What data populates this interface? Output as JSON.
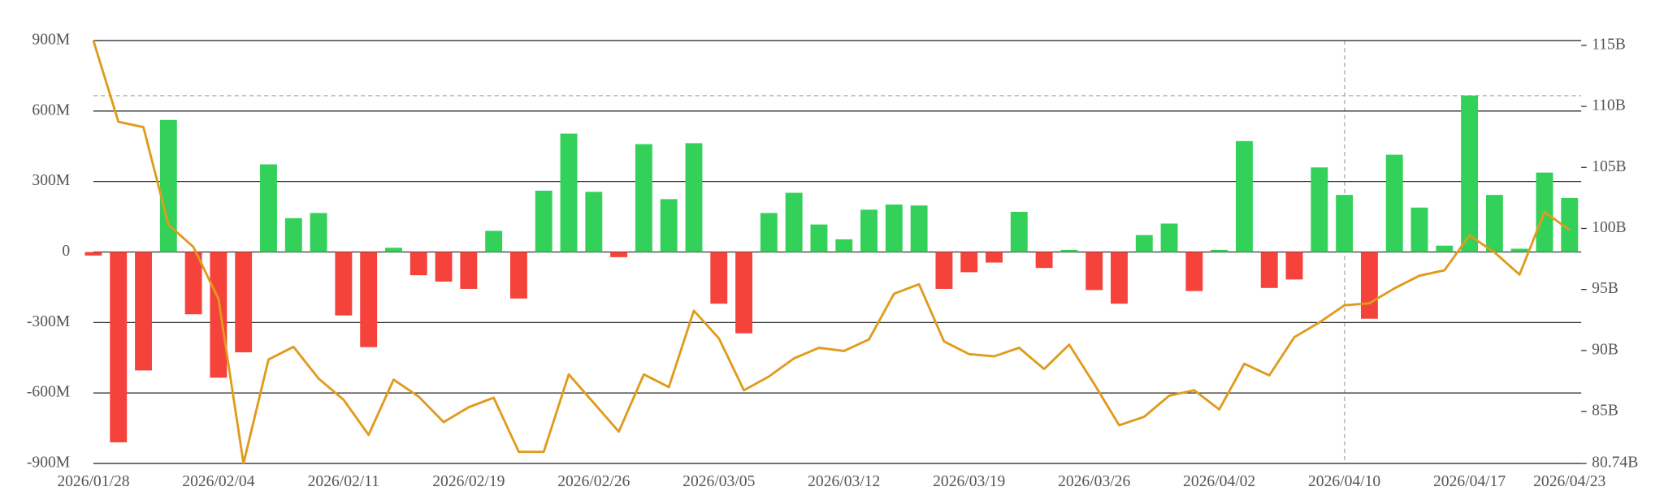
{
  "chart_data": {
    "type": "bar",
    "categories": [
      "2026/01/28",
      null,
      null,
      null,
      null,
      "2026/02/04",
      null,
      null,
      null,
      null,
      "2026/02/11",
      null,
      null,
      null,
      null,
      "2026/02/19",
      null,
      null,
      null,
      null,
      "2026/02/26",
      null,
      null,
      null,
      null,
      "2026/03/05",
      null,
      null,
      null,
      null,
      "2026/03/12",
      null,
      null,
      null,
      null,
      "2026/03/19",
      null,
      null,
      null,
      null,
      "2026/03/26",
      null,
      null,
      null,
      null,
      "2026/04/02",
      null,
      null,
      null,
      null,
      "2026/04/10",
      null,
      null,
      null,
      null,
      "2026/04/17",
      null,
      null,
      null,
      "2026/04/23"
    ],
    "series": [
      {
        "type": "bar",
        "color": "#33d15a",
        "negative_color": "#f5433c",
        "values": [
          -15,
          -810,
          -504,
          562,
          -265,
          -535,
          -427,
          373,
          144,
          166,
          -270,
          -405,
          18,
          -99,
          -126,
          -157,
          90,
          -198,
          261,
          504,
          256,
          -22,
          459,
          225,
          463,
          -220,
          -346,
          166,
          252,
          117,
          54,
          180,
          202,
          198,
          -157,
          -86,
          -45,
          171,
          -68,
          9,
          -162,
          -220,
          72,
          121,
          -166,
          9,
          472,
          -153,
          -117,
          360,
          243,
          -284,
          414,
          189,
          27,
          666,
          243,
          14,
          338,
          230
        ]
      },
      {
        "type": "line",
        "axis": "y2",
        "color": "#e09b1c",
        "values": [
          115.4,
          108.74,
          108.3,
          100.3,
          98.48,
          94.22,
          80.74,
          89.26,
          90.3,
          87.7,
          85.96,
          83.09,
          87.61,
          86.22,
          84.13,
          85.35,
          86.13,
          81.7,
          81.7,
          88.04,
          85.7,
          83.35,
          88.04,
          87.0,
          93.26,
          91.0,
          86.74,
          87.87,
          89.35,
          90.22,
          89.96,
          90.91,
          94.65,
          95.43,
          90.74,
          89.7,
          89.52,
          90.22,
          88.48,
          90.48,
          87.26,
          83.87,
          84.57,
          86.3,
          86.74,
          85.17,
          88.91,
          87.96,
          91.09,
          92.3,
          93.7,
          93.87,
          95.09,
          96.13,
          96.57,
          99.43,
          98.04,
          96.22,
          101.35,
          99.87
        ]
      }
    ],
    "ylim": [
      -900,
      900
    ],
    "yticks": [
      {
        "value": -900,
        "label": "-900M"
      },
      {
        "value": -600,
        "label": "-600M"
      },
      {
        "value": -300,
        "label": "-300M"
      },
      0,
      {
        "value": 300,
        "label": "300M"
      },
      {
        "value": 600,
        "label": "600M"
      },
      {
        "value": 900,
        "label": "900M"
      }
    ],
    "y2lim": [
      80.74,
      115.4
    ],
    "y2ticks": [
      {
        "value": 80.74,
        "label": "80.74B"
      },
      {
        "value": 85,
        "label": "85B"
      },
      {
        "value": 90,
        "label": "90B"
      },
      {
        "value": 95,
        "label": "95B"
      },
      {
        "value": 100,
        "label": "100B"
      },
      {
        "value": 105,
        "label": "105B"
      },
      {
        "value": 110,
        "label": "110B"
      },
      {
        "value": 115,
        "label": "115B"
      }
    ],
    "grid": true
  }
}
